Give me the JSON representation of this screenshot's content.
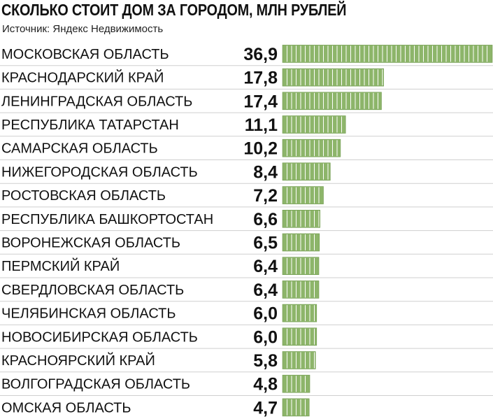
{
  "chart_data": {
    "type": "bar",
    "orientation": "horizontal",
    "title": "СКОЛЬКО СТОИТ ДОМ ЗА ГОРОДОМ, МЛН РУБЛЕЙ",
    "subtitle": "Источник: Яндекс Недвижимость",
    "categories": [
      "МОСКОВСКАЯ ОБЛАСТЬ",
      "КРАСНОДАРСКИЙ КРАЙ",
      "ЛЕНИНГРАДСКАЯ ОБЛАСТЬ",
      "РЕСПУБЛИКА ТАТАРСТАН",
      "САМАРСКАЯ ОБЛАСТЬ",
      "НИЖЕГОРОДСКАЯ ОБЛАСТЬ",
      "РОСТОВСКАЯ ОБЛАСТЬ",
      "РЕСПУБЛИКА БАШКОРТОСТАН",
      "ВОРОНЕЖСКАЯ ОБЛАСТЬ",
      "ПЕРМСКИЙ КРАЙ",
      "СВЕРДЛОВСКАЯ ОБЛАСТЬ",
      "ЧЕЛЯБИНСКАЯ ОБЛАСТЬ",
      "НОВОСИБИРСКАЯ ОБЛАСТЬ",
      "КРАСНОЯРСКИЙ КРАЙ",
      "ВОЛГОГРАДСКАЯ ОБЛАСТЬ",
      "ОМСКАЯ ОБЛАСТЬ"
    ],
    "values": [
      36.9,
      17.8,
      17.4,
      11.1,
      10.2,
      8.4,
      7.2,
      6.6,
      6.5,
      6.4,
      6.4,
      6.0,
      6.0,
      5.8,
      4.8,
      4.7
    ],
    "value_labels": [
      "36,9",
      "17,8",
      "17,4",
      "11,1",
      "10,2",
      "8,4",
      "7,2",
      "6,6",
      "6,5",
      "6,4",
      "6,4",
      "6,0",
      "6,0",
      "5,8",
      "4,8",
      "4,7"
    ],
    "xlim": [
      0,
      36.9
    ],
    "grid": false,
    "legend": "none",
    "colors": {
      "bar": "#8db56a",
      "bar_edge": "#6f9a4e",
      "segment_line": "#ffffff",
      "divider": "#cfcfcf",
      "text": "#111111"
    }
  }
}
